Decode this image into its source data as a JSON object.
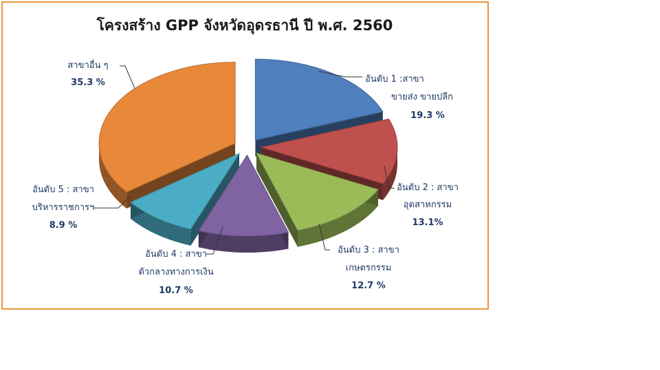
{
  "chart_data": {
    "type": "pie",
    "title": "โครงสร้าง GPP จังหวัดอุดรธานี ปี พ.ศ. 2560",
    "slices": [
      {
        "name_line1": "อันดับ 1 :สาขา",
        "name_line2": "ขายส่ง ขายปลีก",
        "value": 19.3,
        "label": "19.3 %",
        "color": "#4f7fbd"
      },
      {
        "name_line1": "อันดับ 2 : สาขา",
        "name_line2": "อุตสาหกรรม",
        "value": 13.1,
        "label": "13.1%",
        "color": "#c0504d"
      },
      {
        "name_line1": "อันดับ 3 : สาขา",
        "name_line2": "เกษตรกรรม",
        "value": 12.7,
        "label": "12.7 %",
        "color": "#9bbb59"
      },
      {
        "name_line1": "อันดับ 4 : สาขา",
        "name_line2": "ตัวกลางทางการเงิน",
        "value": 10.7,
        "label": "10.7 %",
        "color": "#8064a2"
      },
      {
        "name_line1": "อันดับ 5 : สาขา",
        "name_line2": "บริหารราชการฯ",
        "value": 8.9,
        "label": "8.9 %",
        "color": "#4bacc6"
      },
      {
        "name_line1": "สาขาอื่น ๆ",
        "name_line2": "",
        "value": 35.3,
        "label": "35.3 %",
        "color": "#e8883b"
      }
    ],
    "legend": "none",
    "border_color": "#e8963c"
  }
}
